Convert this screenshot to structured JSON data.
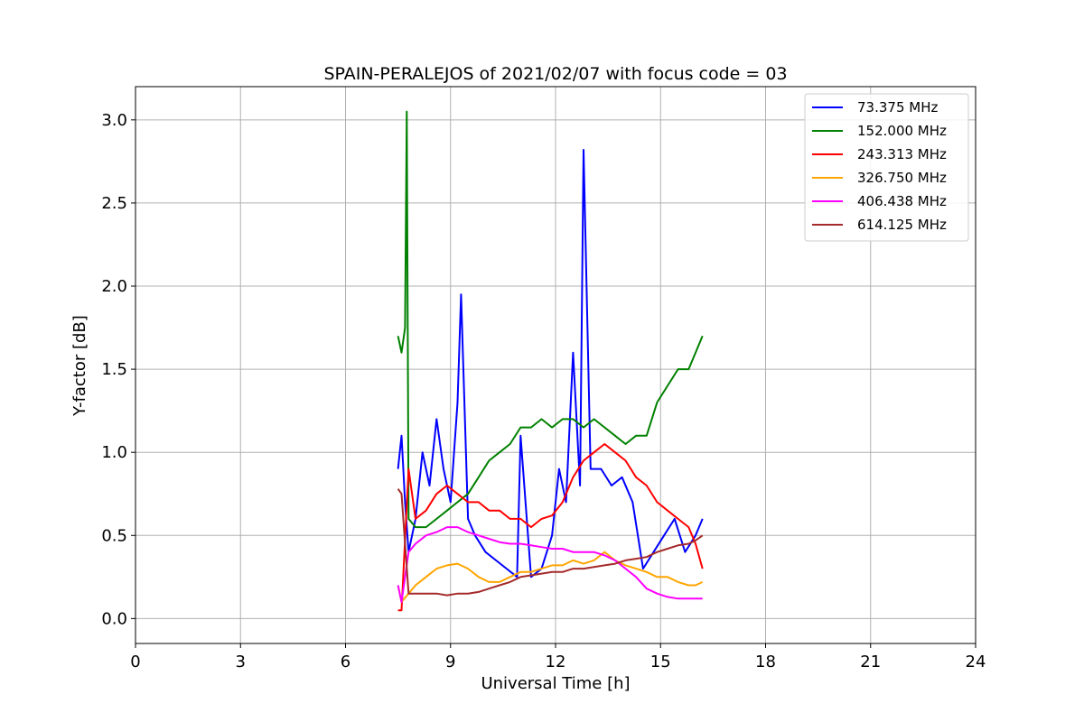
{
  "chart_data": {
    "type": "line",
    "title": "SPAIN-PERALEJOS of 2021/02/07 with focus code = 03",
    "xlabel": "Universal Time [h]",
    "ylabel": "Y-factor [dB]",
    "xlim": [
      0,
      24
    ],
    "ylim": [
      -0.15,
      3.2
    ],
    "xticks": [
      0,
      3,
      6,
      9,
      12,
      15,
      18,
      21,
      24
    ],
    "xtick_labels": [
      "0",
      "3",
      "6",
      "9",
      "12",
      "15",
      "18",
      "21",
      "24"
    ],
    "yticks": [
      0.0,
      0.5,
      1.0,
      1.5,
      2.0,
      2.5,
      3.0
    ],
    "ytick_labels": [
      "0.0",
      "0.5",
      "1.0",
      "1.5",
      "2.0",
      "2.5",
      "3.0"
    ],
    "grid": true,
    "legend_position": "top-right",
    "series": [
      {
        "name": " 73.375 MHz",
        "color": "#0000ff",
        "x": [
          7.5,
          7.6,
          7.7,
          7.8,
          8.0,
          8.2,
          8.4,
          8.6,
          8.8,
          9.0,
          9.2,
          9.3,
          9.5,
          9.7,
          10.0,
          10.3,
          10.6,
          10.9,
          11.0,
          11.3,
          11.6,
          11.9,
          12.1,
          12.3,
          12.5,
          12.7,
          12.8,
          13.0,
          13.3,
          13.6,
          13.9,
          14.2,
          14.5,
          14.8,
          15.1,
          15.4,
          15.7,
          16.0,
          16.2
        ],
        "y": [
          0.9,
          1.1,
          0.7,
          0.4,
          0.6,
          1.0,
          0.8,
          1.2,
          0.9,
          0.7,
          1.3,
          1.95,
          0.6,
          0.5,
          0.4,
          0.35,
          0.3,
          0.25,
          1.1,
          0.25,
          0.3,
          0.5,
          0.9,
          0.7,
          1.6,
          0.8,
          2.82,
          0.9,
          0.9,
          0.8,
          0.85,
          0.7,
          0.3,
          0.4,
          0.5,
          0.6,
          0.4,
          0.5,
          0.6
        ]
      },
      {
        "name": "152.000 MHz",
        "color": "#008000",
        "x": [
          7.5,
          7.6,
          7.7,
          7.75,
          7.8,
          8.0,
          8.3,
          8.6,
          8.9,
          9.2,
          9.5,
          9.8,
          10.1,
          10.4,
          10.7,
          11.0,
          11.3,
          11.6,
          11.9,
          12.2,
          12.5,
          12.8,
          13.1,
          13.4,
          13.7,
          14.0,
          14.3,
          14.6,
          14.9,
          15.2,
          15.5,
          15.8,
          16.0,
          16.2
        ],
        "y": [
          1.7,
          1.6,
          1.75,
          3.05,
          0.6,
          0.55,
          0.55,
          0.6,
          0.65,
          0.7,
          0.75,
          0.85,
          0.95,
          1.0,
          1.05,
          1.15,
          1.15,
          1.2,
          1.15,
          1.2,
          1.2,
          1.15,
          1.2,
          1.15,
          1.1,
          1.05,
          1.1,
          1.1,
          1.3,
          1.4,
          1.5,
          1.5,
          1.6,
          1.7
        ]
      },
      {
        "name": "243.313 MHz",
        "color": "#ff0000",
        "x": [
          7.5,
          7.6,
          7.8,
          8.0,
          8.3,
          8.6,
          8.9,
          9.2,
          9.5,
          9.8,
          10.1,
          10.4,
          10.7,
          11.0,
          11.3,
          11.6,
          11.9,
          12.2,
          12.5,
          12.8,
          13.1,
          13.4,
          13.7,
          14.0,
          14.3,
          14.6,
          14.9,
          15.2,
          15.5,
          15.8,
          16.0,
          16.2
        ],
        "y": [
          0.05,
          0.05,
          0.9,
          0.6,
          0.65,
          0.75,
          0.8,
          0.75,
          0.7,
          0.7,
          0.65,
          0.65,
          0.6,
          0.6,
          0.55,
          0.6,
          0.62,
          0.7,
          0.85,
          0.95,
          1.0,
          1.05,
          1.0,
          0.95,
          0.85,
          0.8,
          0.7,
          0.65,
          0.6,
          0.55,
          0.45,
          0.3
        ]
      },
      {
        "name": "326.750 MHz",
        "color": "#ffa500",
        "x": [
          7.5,
          7.6,
          7.8,
          8.0,
          8.3,
          8.6,
          8.9,
          9.2,
          9.5,
          9.8,
          10.1,
          10.4,
          10.7,
          11.0,
          11.3,
          11.6,
          11.9,
          12.2,
          12.5,
          12.8,
          13.1,
          13.4,
          13.7,
          14.0,
          14.3,
          14.6,
          14.9,
          15.2,
          15.5,
          15.8,
          16.0,
          16.2
        ],
        "y": [
          0.2,
          0.1,
          0.15,
          0.2,
          0.25,
          0.3,
          0.32,
          0.33,
          0.3,
          0.25,
          0.22,
          0.22,
          0.25,
          0.28,
          0.28,
          0.3,
          0.32,
          0.32,
          0.35,
          0.33,
          0.35,
          0.4,
          0.35,
          0.32,
          0.3,
          0.28,
          0.25,
          0.25,
          0.22,
          0.2,
          0.2,
          0.22
        ]
      },
      {
        "name": "406.438 MHz",
        "color": "#ff00ff",
        "x": [
          7.5,
          7.6,
          7.8,
          8.0,
          8.3,
          8.6,
          8.9,
          9.2,
          9.5,
          9.8,
          10.1,
          10.4,
          10.7,
          11.0,
          11.3,
          11.6,
          11.9,
          12.2,
          12.5,
          12.8,
          13.1,
          13.4,
          13.7,
          14.0,
          14.3,
          14.6,
          14.9,
          15.2,
          15.5,
          15.8,
          16.0,
          16.2
        ],
        "y": [
          0.2,
          0.1,
          0.4,
          0.45,
          0.5,
          0.52,
          0.55,
          0.55,
          0.52,
          0.5,
          0.48,
          0.46,
          0.45,
          0.45,
          0.44,
          0.43,
          0.42,
          0.42,
          0.4,
          0.4,
          0.4,
          0.38,
          0.35,
          0.3,
          0.25,
          0.18,
          0.15,
          0.13,
          0.12,
          0.12,
          0.12,
          0.12
        ]
      },
      {
        "name": "614.125 MHz",
        "color": "#a52a2a",
        "x": [
          7.5,
          7.6,
          7.8,
          8.0,
          8.3,
          8.6,
          8.9,
          9.2,
          9.5,
          9.8,
          10.1,
          10.4,
          10.7,
          11.0,
          11.3,
          11.6,
          11.9,
          12.2,
          12.5,
          12.8,
          13.1,
          13.4,
          13.7,
          14.0,
          14.3,
          14.6,
          14.9,
          15.2,
          15.5,
          15.8,
          16.0,
          16.2
        ],
        "y": [
          0.78,
          0.75,
          0.15,
          0.15,
          0.15,
          0.15,
          0.14,
          0.15,
          0.15,
          0.16,
          0.18,
          0.2,
          0.22,
          0.25,
          0.26,
          0.27,
          0.28,
          0.28,
          0.3,
          0.3,
          0.31,
          0.32,
          0.33,
          0.35,
          0.36,
          0.37,
          0.4,
          0.42,
          0.44,
          0.45,
          0.47,
          0.5
        ]
      }
    ]
  }
}
